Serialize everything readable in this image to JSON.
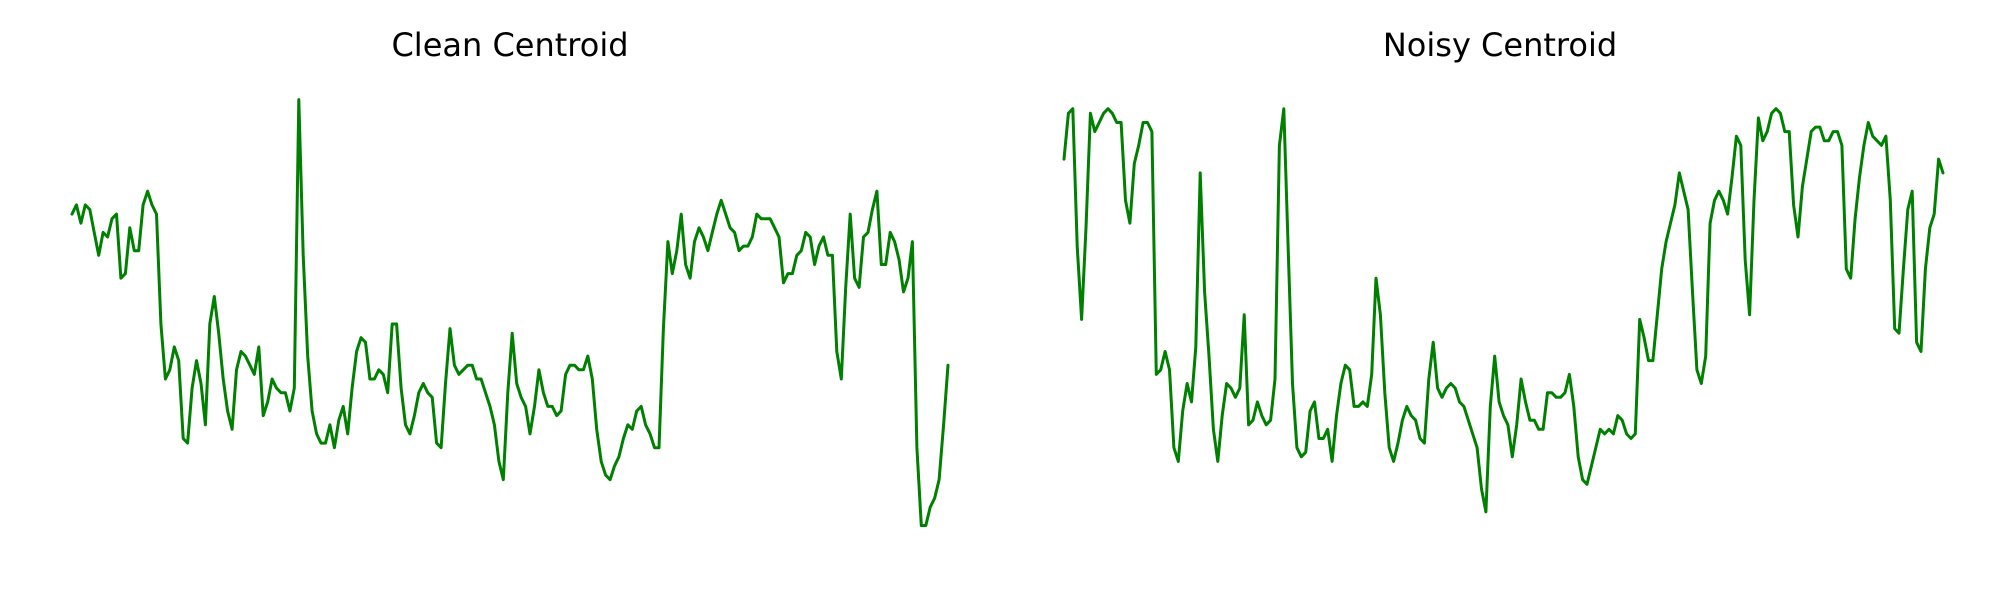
{
  "colors": {
    "line": "#008000",
    "background": "#ffffff"
  },
  "chart_data": [
    {
      "type": "line",
      "title": "Clean Centroid",
      "axes_visible": false,
      "grid": false,
      "ylim": [
        0,
        1
      ],
      "y": [
        0.74,
        0.76,
        0.72,
        0.76,
        0.75,
        0.7,
        0.65,
        0.7,
        0.69,
        0.73,
        0.74,
        0.6,
        0.61,
        0.71,
        0.66,
        0.66,
        0.76,
        0.79,
        0.76,
        0.74,
        0.5,
        0.38,
        0.4,
        0.45,
        0.42,
        0.25,
        0.24,
        0.36,
        0.42,
        0.37,
        0.28,
        0.5,
        0.56,
        0.48,
        0.38,
        0.31,
        0.27,
        0.4,
        0.44,
        0.43,
        0.41,
        0.39,
        0.45,
        0.3,
        0.33,
        0.38,
        0.36,
        0.35,
        0.35,
        0.31,
        0.36,
        0.99,
        0.65,
        0.43,
        0.31,
        0.26,
        0.24,
        0.24,
        0.28,
        0.23,
        0.29,
        0.32,
        0.26,
        0.36,
        0.44,
        0.47,
        0.46,
        0.38,
        0.38,
        0.4,
        0.39,
        0.35,
        0.5,
        0.5,
        0.36,
        0.28,
        0.26,
        0.3,
        0.35,
        0.37,
        0.35,
        0.34,
        0.24,
        0.23,
        0.37,
        0.49,
        0.41,
        0.39,
        0.4,
        0.41,
        0.41,
        0.38,
        0.38,
        0.35,
        0.32,
        0.28,
        0.2,
        0.16,
        0.35,
        0.48,
        0.37,
        0.34,
        0.32,
        0.26,
        0.32,
        0.4,
        0.35,
        0.32,
        0.32,
        0.3,
        0.31,
        0.39,
        0.41,
        0.41,
        0.4,
        0.4,
        0.43,
        0.38,
        0.27,
        0.2,
        0.17,
        0.16,
        0.19,
        0.21,
        0.25,
        0.28,
        0.27,
        0.31,
        0.32,
        0.28,
        0.26,
        0.23,
        0.23,
        0.49,
        0.68,
        0.61,
        0.66,
        0.74,
        0.63,
        0.6,
        0.68,
        0.71,
        0.69,
        0.66,
        0.7,
        0.74,
        0.77,
        0.74,
        0.71,
        0.7,
        0.66,
        0.67,
        0.67,
        0.69,
        0.74,
        0.73,
        0.73,
        0.73,
        0.71,
        0.69,
        0.59,
        0.61,
        0.61,
        0.65,
        0.66,
        0.7,
        0.69,
        0.63,
        0.67,
        0.69,
        0.65,
        0.65,
        0.44,
        0.38,
        0.58,
        0.74,
        0.6,
        0.58,
        0.69,
        0.7,
        0.75,
        0.79,
        0.63,
        0.63,
        0.7,
        0.68,
        0.64,
        0.57,
        0.6,
        0.68,
        0.23,
        0.06,
        0.06,
        0.1,
        0.12,
        0.16,
        0.28,
        0.41
      ]
    },
    {
      "type": "line",
      "title": "Noisy Centroid",
      "axes_visible": false,
      "grid": false,
      "ylim": [
        0,
        1
      ],
      "y": [
        0.86,
        0.96,
        0.97,
        0.67,
        0.51,
        0.71,
        0.96,
        0.92,
        0.94,
        0.96,
        0.97,
        0.96,
        0.94,
        0.94,
        0.77,
        0.72,
        0.85,
        0.89,
        0.94,
        0.94,
        0.92,
        0.39,
        0.4,
        0.44,
        0.4,
        0.23,
        0.2,
        0.31,
        0.37,
        0.33,
        0.45,
        0.83,
        0.57,
        0.43,
        0.27,
        0.2,
        0.3,
        0.37,
        0.36,
        0.34,
        0.36,
        0.52,
        0.28,
        0.29,
        0.33,
        0.3,
        0.28,
        0.29,
        0.38,
        0.89,
        0.97,
        0.67,
        0.37,
        0.23,
        0.21,
        0.22,
        0.31,
        0.33,
        0.25,
        0.25,
        0.27,
        0.2,
        0.3,
        0.37,
        0.41,
        0.4,
        0.32,
        0.32,
        0.33,
        0.32,
        0.39,
        0.6,
        0.52,
        0.35,
        0.23,
        0.2,
        0.24,
        0.29,
        0.32,
        0.3,
        0.29,
        0.25,
        0.24,
        0.38,
        0.46,
        0.36,
        0.34,
        0.36,
        0.37,
        0.36,
        0.33,
        0.32,
        0.29,
        0.26,
        0.23,
        0.14,
        0.09,
        0.32,
        0.43,
        0.33,
        0.3,
        0.28,
        0.21,
        0.28,
        0.38,
        0.33,
        0.29,
        0.29,
        0.27,
        0.27,
        0.35,
        0.35,
        0.34,
        0.34,
        0.35,
        0.39,
        0.32,
        0.21,
        0.16,
        0.15,
        0.19,
        0.23,
        0.27,
        0.26,
        0.27,
        0.26,
        0.3,
        0.29,
        0.26,
        0.25,
        0.26,
        0.51,
        0.47,
        0.42,
        0.42,
        0.52,
        0.62,
        0.68,
        0.72,
        0.76,
        0.83,
        0.79,
        0.75,
        0.57,
        0.4,
        0.37,
        0.43,
        0.72,
        0.77,
        0.79,
        0.77,
        0.74,
        0.82,
        0.91,
        0.89,
        0.64,
        0.52,
        0.77,
        0.95,
        0.9,
        0.92,
        0.96,
        0.97,
        0.96,
        0.92,
        0.92,
        0.76,
        0.69,
        0.8,
        0.86,
        0.92,
        0.93,
        0.93,
        0.9,
        0.9,
        0.92,
        0.92,
        0.89,
        0.62,
        0.6,
        0.73,
        0.82,
        0.89,
        0.94,
        0.91,
        0.9,
        0.89,
        0.91,
        0.77,
        0.49,
        0.48,
        0.62,
        0.75,
        0.79,
        0.46,
        0.44,
        0.62,
        0.71,
        0.74,
        0.86,
        0.83
      ]
    }
  ]
}
